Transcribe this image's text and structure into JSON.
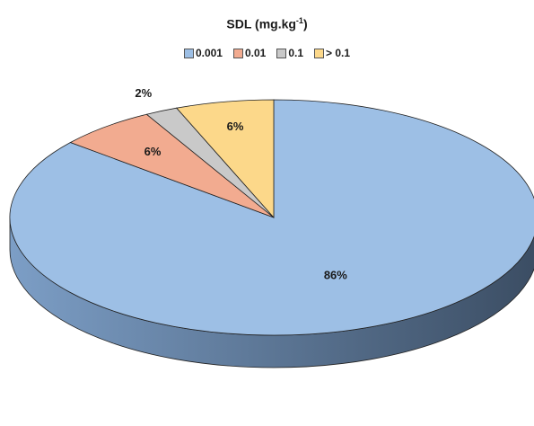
{
  "chart_data": {
    "type": "pie",
    "title_main": "SDL (mg.kg",
    "title_sup": "-1",
    "title_end": ")",
    "categories": [
      "0.001",
      "0.01",
      "0.1",
      "> 0.1"
    ],
    "values": [
      86,
      6,
      2,
      6
    ],
    "data_labels": [
      "86%",
      "6%",
      "2%",
      "6%"
    ],
    "colors": [
      "#9dbfe5",
      "#f2ab90",
      "#c9c9c9",
      "#fcd88a"
    ],
    "side_color_dark": "#3b4d63",
    "side_color_light": "#7c9ec6",
    "legend_position": "top",
    "three_d": true
  }
}
